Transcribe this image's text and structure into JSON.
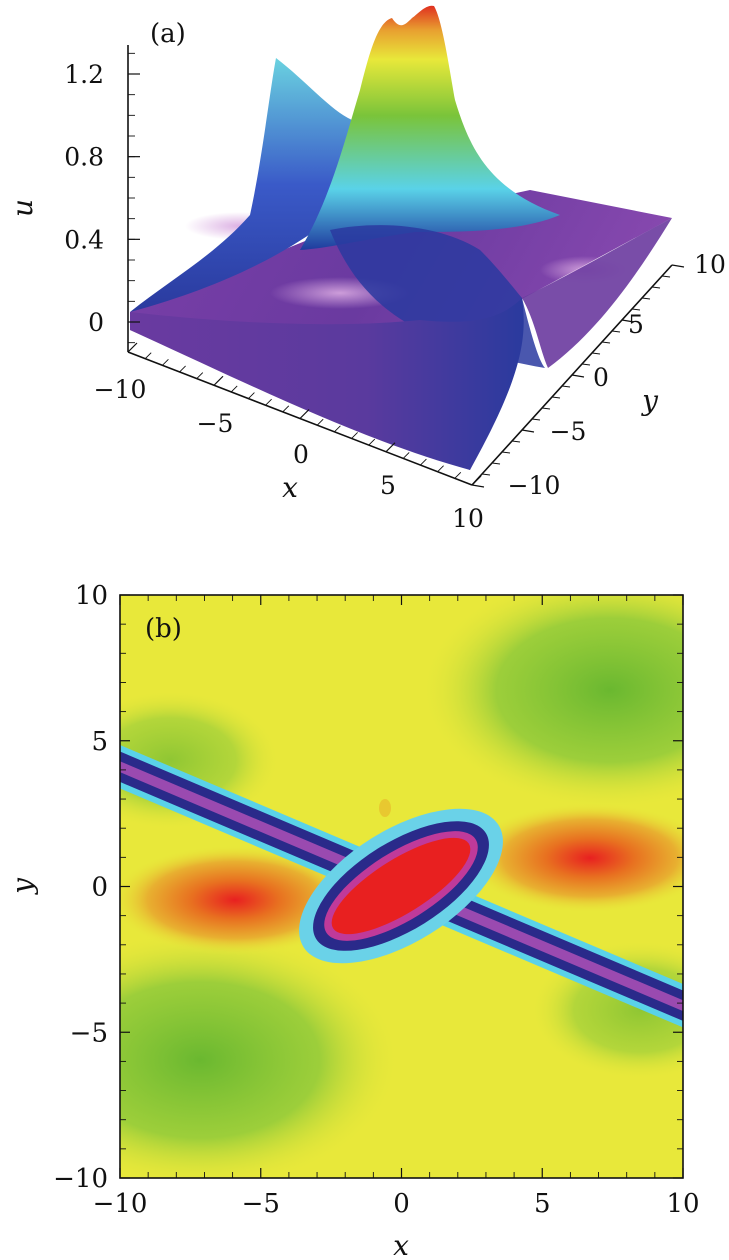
{
  "chart_data": [
    {
      "type": "surface",
      "panel_label": "(a)",
      "xlabel": "x",
      "ylabel": "y",
      "zlabel": "u",
      "x_ticks": [
        -10,
        -5,
        0,
        5,
        10
      ],
      "y_ticks": [
        -10,
        -5,
        0,
        5,
        10
      ],
      "z_ticks": [
        0,
        0.4,
        0.8,
        1.2
      ],
      "x_tick_labels": [
        "−10",
        "−5",
        "0",
        "5",
        "10"
      ],
      "y_tick_labels": [
        "−10",
        "−5",
        "0",
        "5",
        "10"
      ],
      "z_tick_labels": [
        "0",
        "0.4",
        "0.8",
        "1.2"
      ],
      "xlim": [
        -10,
        10
      ],
      "ylim": [
        -10,
        10
      ],
      "zlim": [
        0,
        1.3
      ],
      "peak_value": 1.3,
      "colormap": [
        "#7a3fa8",
        "#4a3fa8",
        "#1f3a9e",
        "#5ad2e8",
        "#7ac43a",
        "#e8e83a",
        "#e8a030",
        "#e03020"
      ]
    },
    {
      "type": "heatmap",
      "panel_label": "(b)",
      "xlabel": "x",
      "ylabel": "y",
      "x_ticks": [
        -10,
        -5,
        0,
        5,
        10
      ],
      "y_ticks": [
        -10,
        -5,
        0,
        5,
        10
      ],
      "x_tick_labels": [
        "−10",
        "−5",
        "0",
        "5",
        "10"
      ],
      "y_tick_labels": [
        "−10",
        "−5",
        "0",
        "5",
        "10"
      ],
      "xlim": [
        -10,
        10
      ],
      "ylim": [
        -10,
        10
      ],
      "background_color": "#e8e83a",
      "trough_color": "#2a2a8a",
      "peak_color": "#e82020"
    }
  ]
}
